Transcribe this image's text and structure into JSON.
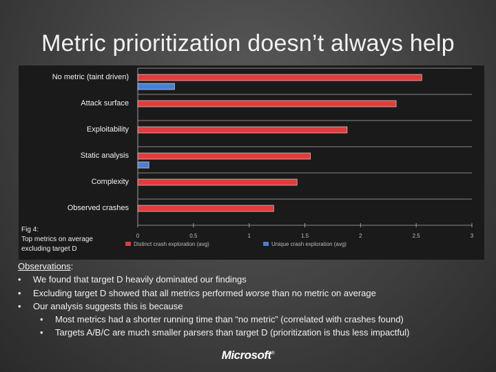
{
  "slide": {
    "title": "Metric prioritization doesn’t always help",
    "caption_line1": "Fig 4:",
    "caption_line2": "Top metrics on average",
    "caption_line3": "excluding target D",
    "logo_text": "Microsoft",
    "logo_mark": "®"
  },
  "observations": {
    "heading": "Observations",
    "heading_suffix": ":",
    "bullet": "•",
    "items": [
      {
        "text_before": "We found that target D heavily dominated our findings",
        "emphasis": "",
        "text_after": ""
      },
      {
        "text_before": "Excluding target D showed that all metrics performed ",
        "emphasis": "worse",
        "text_after": " than no metric on average"
      },
      {
        "text_before": "Our analysis suggests this is because",
        "emphasis": "",
        "text_after": ""
      }
    ],
    "subitems": [
      {
        "text": "Most metrics had a shorter running time than “no metric” (correlated with crashes found)"
      },
      {
        "text": "Targets A/B/C are much smaller parsers than target D (prioritization is thus less impactful)"
      }
    ]
  },
  "chart_data": {
    "type": "bar",
    "orientation": "horizontal",
    "title": "",
    "xlabel": "",
    "ylabel": "",
    "xlim": [
      0,
      3
    ],
    "x_ticks": [
      "0",
      "0.5",
      "1",
      "1.5",
      "2",
      "2.5",
      "3"
    ],
    "grid": true,
    "legend_position": "bottom",
    "categories": [
      "No metric (taint driven)",
      "Attack surface",
      "Exploitability",
      "Static analysis",
      "Complexity",
      "Observed crashes"
    ],
    "series": [
      {
        "name": "Distinct crash exploration (avg)",
        "color": "#e03c3c",
        "values": [
          2.55,
          2.32,
          1.88,
          1.55,
          1.43,
          1.22
        ]
      },
      {
        "name": "Unique crash exploration (avg)",
        "color": "#4a7fd4",
        "values": [
          0.33,
          0,
          0,
          0.1,
          0,
          0
        ]
      }
    ]
  }
}
